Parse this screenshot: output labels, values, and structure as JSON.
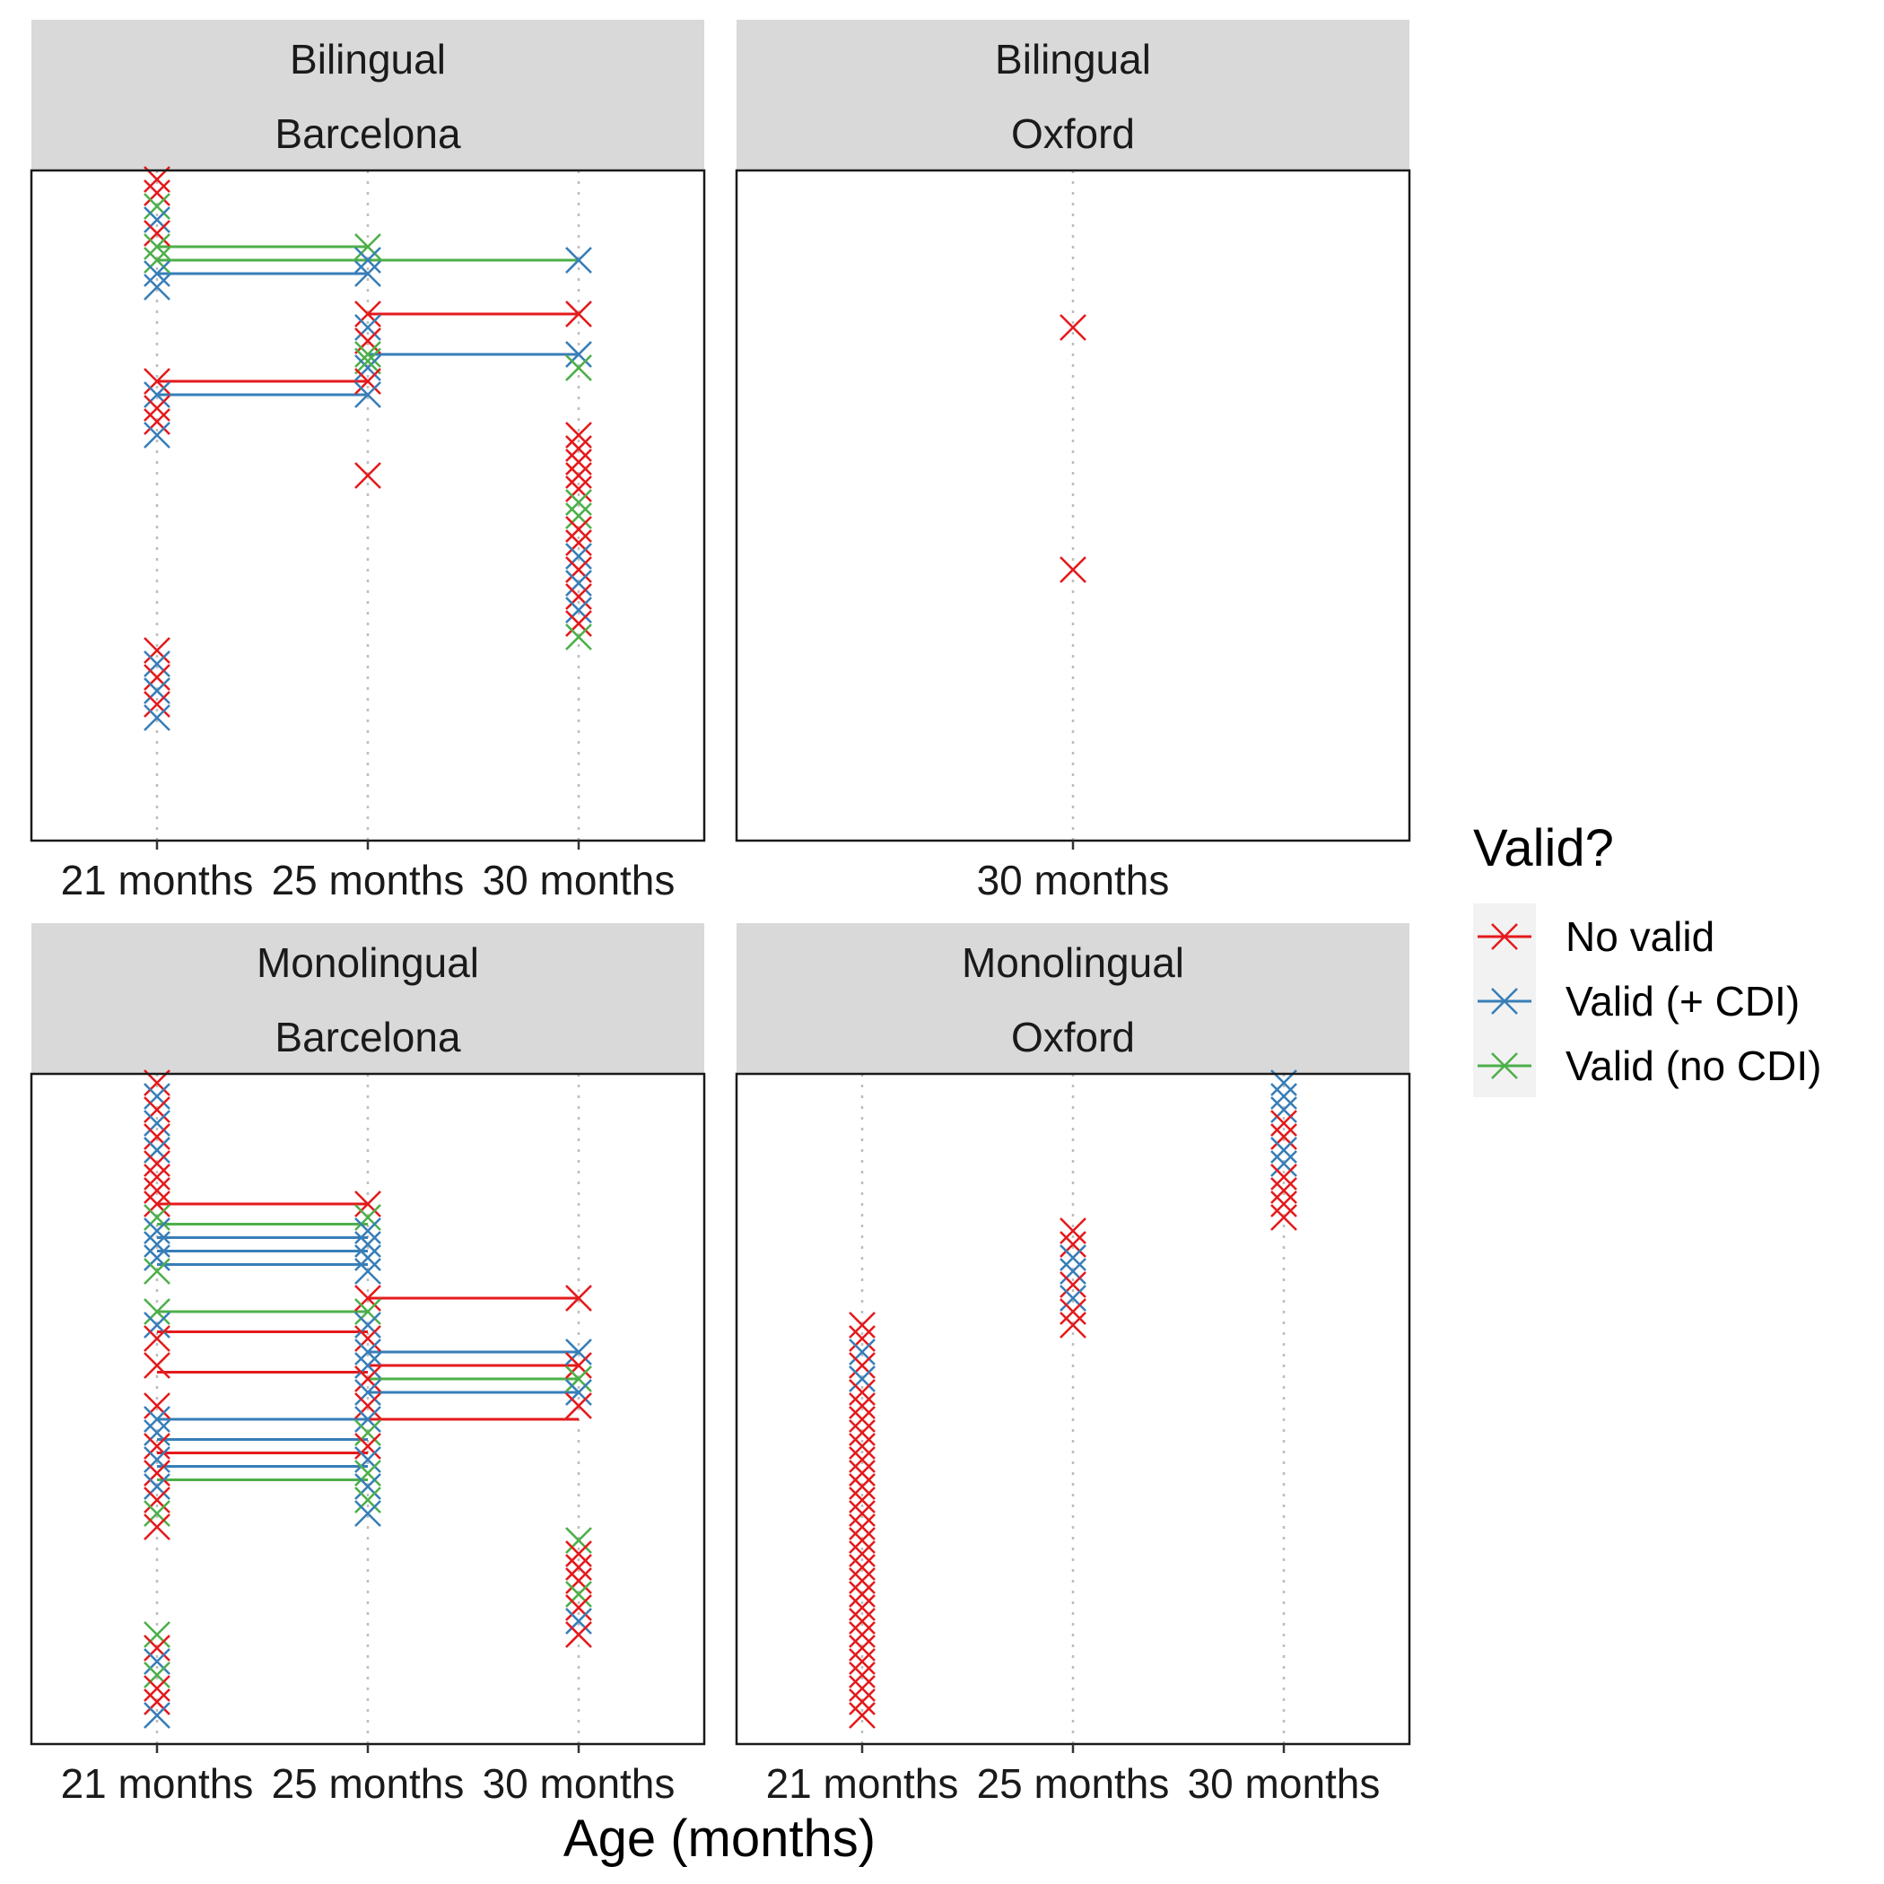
{
  "chart_data": {
    "type": "scatter",
    "xlabel": "Age (months)",
    "legend": {
      "title": "Valid?",
      "placement": "right",
      "entries": [
        {
          "key": "no",
          "label": "No valid",
          "color": "#E41A1C"
        },
        {
          "key": "cdi",
          "label": "Valid (+ CDI)",
          "color": "#377EB8"
        },
        {
          "key": "nocdi",
          "label": "Valid (no CDI)",
          "color": "#4DAF4A"
        }
      ]
    },
    "panels": [
      {
        "id": "bil-bcn",
        "strip": [
          "Bilingual",
          "Barcelona"
        ],
        "ticks": [
          "21 months",
          "25 months",
          "30 months"
        ],
        "columns": [
          {
            "x": "21 months",
            "points": [
              [
                "no",
                0
              ],
              [
                "no",
                1
              ],
              [
                "nocdi",
                2
              ],
              [
                "cdi",
                3
              ],
              [
                "no",
                4
              ],
              [
                "nocdi",
                5
              ],
              [
                "nocdi",
                6
              ],
              [
                "cdi",
                7
              ],
              [
                "cdi",
                8
              ],
              [
                "no",
                15
              ],
              [
                "cdi",
                16
              ],
              [
                "no",
                17
              ],
              [
                "no",
                18
              ],
              [
                "cdi",
                19
              ],
              [
                "no",
                35
              ],
              [
                "cdi",
                36
              ],
              [
                "no",
                37
              ],
              [
                "cdi",
                38
              ],
              [
                "no",
                39
              ],
              [
                "cdi",
                40
              ]
            ]
          },
          {
            "x": "25 months",
            "points": [
              [
                "nocdi",
                5
              ],
              [
                "cdi",
                6
              ],
              [
                "cdi",
                7
              ],
              [
                "no",
                10
              ],
              [
                "cdi",
                11
              ],
              [
                "no",
                12
              ],
              [
                "nocdi",
                13
              ],
              [
                "cdi",
                14
              ],
              [
                "nocdi",
                13.5
              ],
              [
                "no",
                15
              ],
              [
                "cdi",
                16
              ],
              [
                "no",
                22
              ]
            ]
          },
          {
            "x": "30 months",
            "points": [
              [
                "cdi",
                6
              ],
              [
                "no",
                10
              ],
              [
                "cdi",
                13
              ],
              [
                "nocdi",
                14
              ],
              [
                "no",
                19
              ],
              [
                "no",
                20
              ],
              [
                "no",
                21
              ],
              [
                "no",
                22
              ],
              [
                "no",
                23
              ],
              [
                "nocdi",
                24
              ],
              [
                "nocdi",
                25
              ],
              [
                "no",
                26
              ],
              [
                "no",
                27
              ],
              [
                "cdi",
                28
              ],
              [
                "no",
                29
              ],
              [
                "cdi",
                30
              ],
              [
                "no",
                31
              ],
              [
                "cdi",
                32
              ],
              [
                "no",
                33
              ],
              [
                "nocdi",
                34
              ]
            ]
          }
        ],
        "links": [
          {
            "from": "21 months",
            "to": "25 months",
            "y": 5,
            "valid": "nocdi"
          },
          {
            "from": "21 months",
            "to": "30 months",
            "y": 6,
            "valid": "nocdi"
          },
          {
            "from": "21 months",
            "to": "25 months",
            "y": 7,
            "valid": "cdi"
          },
          {
            "from": "25 months",
            "to": "30 months",
            "y": 10,
            "valid": "no"
          },
          {
            "from": "25 months",
            "to": "30 months",
            "y": 13,
            "valid": "cdi"
          },
          {
            "from": "21 months",
            "to": "25 months",
            "y": 15,
            "valid": "no"
          },
          {
            "from": "21 months",
            "to": "25 months",
            "y": 16,
            "valid": "cdi"
          }
        ]
      },
      {
        "id": "bil-oxf",
        "strip": [
          "Bilingual",
          "Oxford"
        ],
        "ticks": [
          "30 months"
        ],
        "columns": [
          {
            "x": "30 months",
            "points": [
              [
                "no",
                11
              ],
              [
                "no",
                29
              ]
            ]
          }
        ],
        "links": []
      },
      {
        "id": "mono-bcn",
        "strip": [
          "Monolingual",
          "Barcelona"
        ],
        "ticks": [
          "21 months",
          "25 months",
          "30 months"
        ],
        "columns": [
          {
            "x": "21 months",
            "points": [
              [
                "no",
                0
              ],
              [
                "cdi",
                1
              ],
              [
                "no",
                2
              ],
              [
                "cdi",
                3
              ],
              [
                "no",
                4
              ],
              [
                "cdi",
                5
              ],
              [
                "no",
                6
              ],
              [
                "no",
                7
              ],
              [
                "no",
                8
              ],
              [
                "no",
                9
              ],
              [
                "nocdi",
                10
              ],
              [
                "cdi",
                11
              ],
              [
                "cdi",
                12
              ],
              [
                "cdi",
                13
              ],
              [
                "nocdi",
                14
              ],
              [
                "nocdi",
                17
              ],
              [
                "cdi",
                18
              ],
              [
                "no",
                19
              ],
              [
                "no",
                21
              ],
              [
                "no",
                24
              ],
              [
                "cdi",
                25
              ],
              [
                "cdi",
                26
              ],
              [
                "no",
                27
              ],
              [
                "cdi",
                28
              ],
              [
                "no",
                29
              ],
              [
                "cdi",
                30
              ],
              [
                "no",
                31
              ],
              [
                "nocdi",
                32
              ],
              [
                "no",
                33
              ],
              [
                "nocdi",
                41
              ],
              [
                "no",
                42
              ],
              [
                "cdi",
                43
              ],
              [
                "nocdi",
                44
              ],
              [
                "no",
                45
              ],
              [
                "no",
                46
              ],
              [
                "cdi",
                47
              ]
            ]
          },
          {
            "x": "25 months",
            "points": [
              [
                "no",
                9
              ],
              [
                "nocdi",
                10
              ],
              [
                "cdi",
                11
              ],
              [
                "cdi",
                12
              ],
              [
                "cdi",
                13
              ],
              [
                "cdi",
                14
              ],
              [
                "no",
                16
              ],
              [
                "nocdi",
                17
              ],
              [
                "cdi",
                18
              ],
              [
                "no",
                19
              ],
              [
                "cdi",
                20
              ],
              [
                "cdi",
                21
              ],
              [
                "no",
                22
              ],
              [
                "cdi",
                23
              ],
              [
                "no",
                24
              ],
              [
                "cdi",
                25
              ],
              [
                "nocdi",
                26
              ],
              [
                "no",
                27
              ],
              [
                "cdi",
                28
              ],
              [
                "nocdi",
                29
              ],
              [
                "cdi",
                30
              ],
              [
                "nocdi",
                31
              ],
              [
                "cdi",
                32
              ]
            ]
          },
          {
            "x": "30 months",
            "points": [
              [
                "no",
                16
              ],
              [
                "cdi",
                20
              ],
              [
                "no",
                21
              ],
              [
                "nocdi",
                22
              ],
              [
                "cdi",
                23
              ],
              [
                "no",
                24
              ],
              [
                "nocdi",
                34
              ],
              [
                "no",
                35
              ],
              [
                "no",
                36
              ],
              [
                "no",
                37
              ],
              [
                "nocdi",
                38
              ],
              [
                "no",
                39
              ],
              [
                "cdi",
                40
              ],
              [
                "no",
                41
              ]
            ]
          }
        ],
        "links": [
          {
            "from": "21 months",
            "to": "25 months",
            "y": 9,
            "valid": "no"
          },
          {
            "from": "21 months",
            "to": "25 months",
            "y": 10.5,
            "valid": "nocdi"
          },
          {
            "from": "21 months",
            "to": "25 months",
            "y": 11.5,
            "valid": "cdi"
          },
          {
            "from": "21 months",
            "to": "25 months",
            "y": 12.5,
            "valid": "cdi"
          },
          {
            "from": "21 months",
            "to": "25 months",
            "y": 13.5,
            "valid": "cdi"
          },
          {
            "from": "25 months",
            "to": "30 months",
            "y": 16,
            "valid": "no"
          },
          {
            "from": "21 months",
            "to": "25 months",
            "y": 17,
            "valid": "nocdi"
          },
          {
            "from": "21 months",
            "to": "25 months",
            "y": 18.5,
            "valid": "no"
          },
          {
            "from": "25 months",
            "to": "30 months",
            "y": 20,
            "valid": "cdi"
          },
          {
            "from": "25 months",
            "to": "30 months",
            "y": 21,
            "valid": "no"
          },
          {
            "from": "21 months",
            "to": "25 months",
            "y": 21.5,
            "valid": "no"
          },
          {
            "from": "25 months",
            "to": "30 months",
            "y": 22,
            "valid": "nocdi"
          },
          {
            "from": "25 months",
            "to": "30 months",
            "y": 23,
            "valid": "cdi"
          },
          {
            "from": "21 months",
            "to": "25 months",
            "y": 25,
            "valid": "cdi"
          },
          {
            "from": "25 months",
            "to": "30 months",
            "y": 25,
            "valid": "no"
          },
          {
            "from": "21 months",
            "to": "25 months",
            "y": 26.5,
            "valid": "cdi"
          },
          {
            "from": "21 months",
            "to": "25 months",
            "y": 27.5,
            "valid": "no"
          },
          {
            "from": "21 months",
            "to": "25 months",
            "y": 28.5,
            "valid": "cdi"
          },
          {
            "from": "21 months",
            "to": "25 months",
            "y": 29.5,
            "valid": "nocdi"
          }
        ]
      },
      {
        "id": "mono-oxf",
        "strip": [
          "Monolingual",
          "Oxford"
        ],
        "ticks": [
          "21 months",
          "25 months",
          "30 months"
        ],
        "columns": [
          {
            "x": "21 months",
            "points": [
              [
                "no",
                18
              ],
              [
                "no",
                19
              ],
              [
                "cdi",
                20
              ],
              [
                "no",
                21
              ],
              [
                "cdi",
                22
              ],
              [
                "no",
                23
              ],
              [
                "no",
                24
              ],
              [
                "no",
                25
              ],
              [
                "no",
                26
              ],
              [
                "no",
                27
              ],
              [
                "no",
                28
              ],
              [
                "no",
                29
              ],
              [
                "no",
                30
              ],
              [
                "no",
                31
              ],
              [
                "no",
                32
              ],
              [
                "no",
                33
              ],
              [
                "no",
                34
              ],
              [
                "no",
                35
              ],
              [
                "no",
                36
              ],
              [
                "no",
                37
              ],
              [
                "no",
                38
              ],
              [
                "no",
                39
              ],
              [
                "no",
                40
              ],
              [
                "no",
                41
              ],
              [
                "no",
                42
              ],
              [
                "no",
                43
              ],
              [
                "no",
                44
              ],
              [
                "no",
                45
              ],
              [
                "no",
                46
              ],
              [
                "no",
                47
              ]
            ]
          },
          {
            "x": "25 months",
            "points": [
              [
                "no",
                11
              ],
              [
                "no",
                12
              ],
              [
                "cdi",
                13
              ],
              [
                "cdi",
                14
              ],
              [
                "no",
                15
              ],
              [
                "cdi",
                16
              ],
              [
                "no",
                17
              ],
              [
                "no",
                18
              ]
            ]
          },
          {
            "x": "30 months",
            "points": [
              [
                "cdi",
                0
              ],
              [
                "cdi",
                1
              ],
              [
                "cdi",
                2
              ],
              [
                "no",
                3
              ],
              [
                "no",
                4
              ],
              [
                "cdi",
                5
              ],
              [
                "cdi",
                6
              ],
              [
                "no",
                7
              ],
              [
                "no",
                8
              ],
              [
                "no",
                9
              ],
              [
                "no",
                10
              ]
            ]
          }
        ],
        "links": []
      }
    ]
  }
}
